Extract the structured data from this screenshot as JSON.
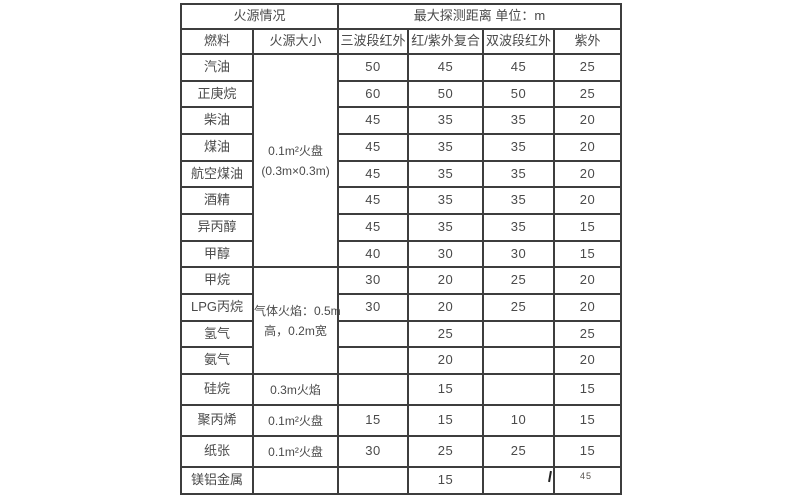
{
  "page": {
    "background_color": "#ffffff",
    "page_number": "45"
  },
  "table": {
    "border_color": "#3d3d3d",
    "text_color": "#4a4a4a",
    "header": {
      "fire_source_group": "火源情况",
      "distance_group": "最大探测距离 单位：m",
      "columns": [
        "燃料",
        "火源大小",
        "三波段红外",
        "红/紫外复合",
        "双波段红外",
        "紫外"
      ]
    },
    "rows": [
      {
        "fuel": "汽油",
        "size_lines": [
          "0.1m²火盘",
          "(0.3m×0.3m)"
        ],
        "size_rowspan": 8,
        "v": [
          "50",
          "45",
          "45",
          "25"
        ]
      },
      {
        "fuel": "正庚烷",
        "v": [
          "60",
          "50",
          "50",
          "25"
        ]
      },
      {
        "fuel": "柴油",
        "v": [
          "45",
          "35",
          "35",
          "20"
        ]
      },
      {
        "fuel": "煤油",
        "v": [
          "45",
          "35",
          "35",
          "20"
        ]
      },
      {
        "fuel": "航空煤油",
        "v": [
          "45",
          "35",
          "35",
          "20"
        ]
      },
      {
        "fuel": "酒精",
        "v": [
          "45",
          "35",
          "35",
          "20"
        ]
      },
      {
        "fuel": "异丙醇",
        "v": [
          "45",
          "35",
          "35",
          "15"
        ]
      },
      {
        "fuel": "甲醇",
        "v": [
          "40",
          "30",
          "30",
          "15"
        ]
      },
      {
        "fuel": "甲烷",
        "size_lines": [
          "气体火焰：0.5m",
          "高，0.2m宽"
        ],
        "size_rowspan": 4,
        "v": [
          "30",
          "20",
          "25",
          "20"
        ]
      },
      {
        "fuel": "LPG丙烷",
        "v": [
          "30",
          "20",
          "25",
          "20"
        ]
      },
      {
        "fuel": "氢气",
        "v": [
          "",
          "25",
          "",
          "25"
        ]
      },
      {
        "fuel": "氨气",
        "v": [
          "",
          "20",
          "",
          "20"
        ]
      },
      {
        "fuel": "硅烷",
        "size_lines": [
          "0.3m火焰"
        ],
        "size_rowspan": 1,
        "v": [
          "",
          "15",
          "",
          "15"
        ]
      },
      {
        "fuel": "聚丙烯",
        "size_lines": [
          "0.1m²火盘"
        ],
        "size_rowspan": 1,
        "v": [
          "15",
          "15",
          "10",
          "15"
        ]
      },
      {
        "fuel": "纸张",
        "size_lines": [
          "0.1m²火盘"
        ],
        "size_rowspan": 1,
        "v": [
          "30",
          "25",
          "25",
          "15"
        ]
      },
      {
        "fuel": "镁铝金属",
        "size_lines": [
          ""
        ],
        "size_rowspan": 1,
        "v": [
          "",
          "15",
          "",
          ""
        ]
      }
    ]
  },
  "chart_data": {
    "type": "table",
    "title": "最大探测距离 单位：m",
    "columns": [
      "燃料",
      "火源大小",
      "三波段红外",
      "红/紫外复合",
      "双波段红外",
      "紫外"
    ],
    "rows": [
      [
        "汽油",
        "0.1m²火盘 (0.3m×0.3m)",
        "50",
        "45",
        "45",
        "25"
      ],
      [
        "正庚烷",
        "0.1m²火盘 (0.3m×0.3m)",
        "60",
        "50",
        "50",
        "25"
      ],
      [
        "柴油",
        "0.1m²火盘 (0.3m×0.3m)",
        "45",
        "35",
        "35",
        "20"
      ],
      [
        "煤油",
        "0.1m²火盘 (0.3m×0.3m)",
        "45",
        "35",
        "35",
        "20"
      ],
      [
        "航空煤油",
        "0.1m²火盘 (0.3m×0.3m)",
        "45",
        "35",
        "35",
        "20"
      ],
      [
        "酒精",
        "0.1m²火盘 (0.3m×0.3m)",
        "45",
        "35",
        "35",
        "20"
      ],
      [
        "异丙醇",
        "0.1m²火盘 (0.3m×0.3m)",
        "45",
        "35",
        "35",
        "15"
      ],
      [
        "甲醇",
        "0.1m²火盘 (0.3m×0.3m)",
        "40",
        "30",
        "30",
        "15"
      ],
      [
        "甲烷",
        "气体火焰：0.5m高，0.2m宽",
        "30",
        "20",
        "25",
        "20"
      ],
      [
        "LPG丙烷",
        "气体火焰：0.5m高，0.2m宽",
        "30",
        "20",
        "25",
        "20"
      ],
      [
        "氢气",
        "气体火焰：0.5m高，0.2m宽",
        "",
        "25",
        "",
        "25"
      ],
      [
        "氨气",
        "气体火焰：0.5m高，0.2m宽",
        "",
        "20",
        "",
        "20"
      ],
      [
        "硅烷",
        "0.3m火焰",
        "",
        "15",
        "",
        "15"
      ],
      [
        "聚丙烯",
        "0.1m²火盘",
        "15",
        "15",
        "10",
        "15"
      ],
      [
        "纸张",
        "0.1m²火盘",
        "30",
        "25",
        "25",
        "15"
      ],
      [
        "镁铝金属",
        "",
        "",
        "15",
        "",
        ""
      ]
    ]
  }
}
